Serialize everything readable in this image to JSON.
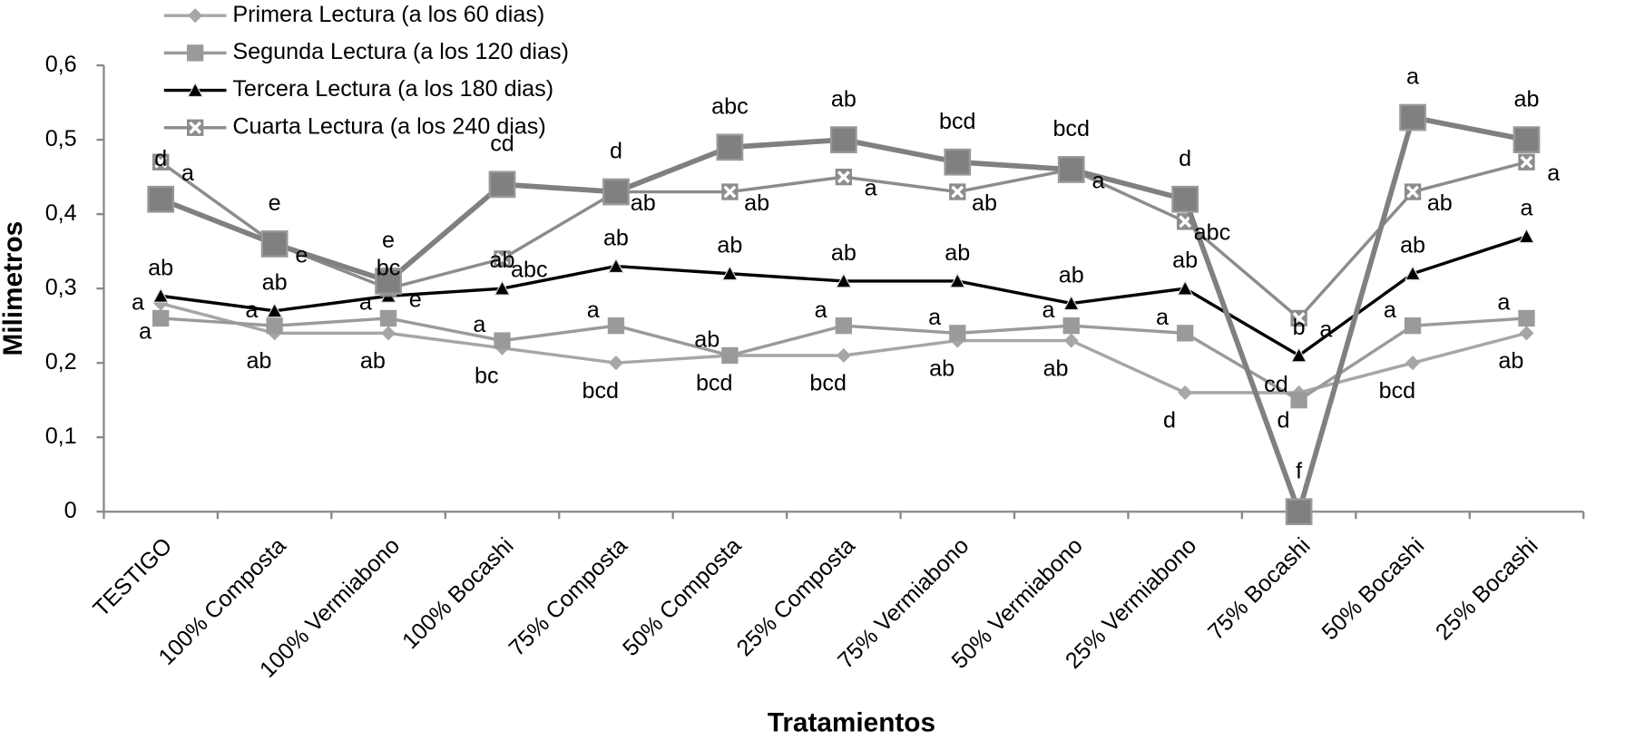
{
  "chart_data": {
    "type": "line",
    "xlabel": "Tratamientos",
    "ylabel": "Milimetros",
    "categories": [
      "TESTIGO",
      "100%  Composta",
      "100%  Vermiabono",
      "100%  Bocashi",
      "75% Composta",
      "50% Composta",
      "25% Composta",
      "75% Vermiabono",
      "50% Vermiabono",
      "25% Vermiabono",
      "75% Bocashi",
      "50% Bocashi",
      "25% Bocashi"
    ],
    "ylim": [
      0,
      0.6
    ],
    "yticks": [
      {
        "value": 0,
        "label": "0"
      },
      {
        "value": 0.1,
        "label": "0,1"
      },
      {
        "value": 0.2,
        "label": "0,2"
      },
      {
        "value": 0.3,
        "label": "0,3"
      },
      {
        "value": 0.4,
        "label": "0,4"
      },
      {
        "value": 0.5,
        "label": "0,5"
      },
      {
        "value": 0.6,
        "label": "0,6"
      }
    ],
    "series": [
      {
        "name": "Primera Lectura (a los 60 dias)",
        "color": "#a6a6a6",
        "marker": "diamond",
        "line_width": 3,
        "values": [
          0.28,
          0.24,
          0.24,
          0.22,
          0.2,
          0.21,
          0.21,
          0.23,
          0.23,
          0.16,
          0.16,
          0.2,
          0.24
        ],
        "letters": [
          "a",
          "ab",
          "ab",
          "bc",
          "bcd",
          "bcd",
          "bcd",
          "ab",
          "ab",
          "d",
          "d",
          "bcd",
          "ab"
        ]
      },
      {
        "name": "Segunda Lectura (a los 120 dias)",
        "color": "#9a9a9a",
        "marker": "square",
        "line_width": 3,
        "values": [
          0.26,
          0.25,
          0.26,
          0.23,
          0.25,
          0.21,
          0.25,
          0.24,
          0.25,
          0.24,
          0.15,
          0.25,
          0.26
        ],
        "letters": [
          "a",
          "a",
          "a",
          "a",
          "a",
          "ab",
          "a",
          "a",
          "a",
          "a",
          "cd",
          "a",
          "a"
        ]
      },
      {
        "name": "Tercera Lectura (a los 180 dias)",
        "color": "#000000",
        "marker": "triangle",
        "line_width": 3,
        "values": [
          0.29,
          0.27,
          0.29,
          0.3,
          0.33,
          0.32,
          0.31,
          0.31,
          0.28,
          0.3,
          0.21,
          0.32,
          0.37
        ],
        "letters": [
          "ab",
          "ab",
          "bc",
          "ab",
          "ab",
          "ab",
          "ab",
          "ab",
          "ab",
          "ab",
          "b",
          "ab",
          "a"
        ]
      },
      {
        "name": "Cuarta Lectura (a los 240 dias)",
        "color": "#8c8c8c",
        "marker": "xsquare",
        "line_width": 3,
        "values": [
          0.47,
          0.36,
          0.3,
          0.34,
          0.43,
          0.43,
          0.45,
          0.43,
          0.46,
          0.39,
          0.26,
          0.43,
          0.47
        ],
        "letters": [
          "a",
          "e",
          "e",
          "abc",
          "ab",
          "ab",
          "a",
          "ab",
          "a",
          "abc",
          "a",
          "ab",
          "a"
        ]
      },
      {
        "color": "#808080",
        "marker": "bigsquare",
        "line_width": 5,
        "values": [
          0.42,
          0.36,
          0.31,
          0.44,
          0.43,
          0.49,
          0.5,
          0.47,
          0.46,
          0.42,
          0.0,
          0.53,
          0.5
        ],
        "letters": [
          "d",
          "e",
          "e",
          "cd",
          "d",
          "abc",
          "ab",
          "bcd",
          "bcd",
          "d",
          "f",
          "a",
          "ab"
        ]
      }
    ]
  }
}
